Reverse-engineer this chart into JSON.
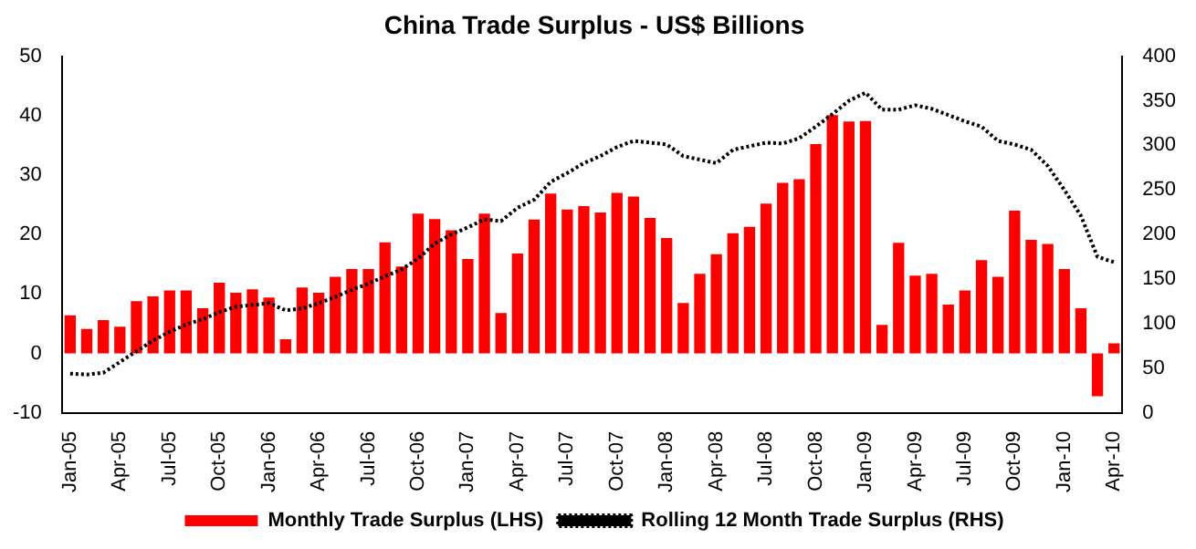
{
  "chart_data": {
    "type": "bar",
    "title": "China Trade Surplus - US$ Billions",
    "categories": [
      "Jan-05",
      null,
      null,
      "Apr-05",
      null,
      null,
      "Jul-05",
      null,
      null,
      "Oct-05",
      null,
      null,
      "Jan-06",
      null,
      null,
      "Apr-06",
      null,
      null,
      "Jul-06",
      null,
      null,
      "Oct-06",
      null,
      null,
      "Jan-07",
      null,
      null,
      "Apr-07",
      null,
      null,
      "Jul-07",
      null,
      null,
      "Oct-07",
      null,
      null,
      "Jan-08",
      null,
      null,
      "Apr-08",
      null,
      null,
      "Jul-08",
      null,
      null,
      "Oct-08",
      null,
      null,
      "Jan-09",
      null,
      null,
      "Apr-09",
      null,
      null,
      "Jul-09",
      null,
      null,
      "Oct-09",
      null,
      null,
      "Jan-10",
      null,
      null,
      "Apr-10"
    ],
    "series": [
      {
        "name": "Monthly Trade Surplus (LHS)",
        "color": "#ff0000",
        "values": [
          6.4,
          4.1,
          5.6,
          4.5,
          8.8,
          9.6,
          10.6,
          10.6,
          7.6,
          11.9,
          10.2,
          10.8,
          9.4,
          2.4,
          11.1,
          10.2,
          12.9,
          14.2,
          14.2,
          18.7,
          14.6,
          23.5,
          22.6,
          20.7,
          15.9,
          23.5,
          6.8,
          16.8,
          22.5,
          26.9,
          24.2,
          24.8,
          23.7,
          27.0,
          26.4,
          22.8,
          19.4,
          8.5,
          13.4,
          16.7,
          20.2,
          21.3,
          25.2,
          28.7,
          29.3,
          35.2,
          40.1,
          39.0,
          39.1,
          4.8,
          18.6,
          13.1,
          13.4,
          8.2,
          10.6,
          15.7,
          12.9,
          24.0,
          19.1,
          18.4,
          14.2,
          7.6,
          -7.2,
          1.7
        ]
      },
      {
        "name": "Rolling 12 Month Trade Surplus (RHS)",
        "type": "line",
        "axis": "y2",
        "color": "#000000",
        "line_style": "dotted",
        "values": [
          44,
          43,
          45,
          57,
          69,
          81,
          91,
          99,
          105,
          113,
          119,
          121,
          123,
          115,
          117,
          123,
          130,
          138,
          145,
          153,
          161,
          173,
          190,
          200,
          208,
          217,
          215,
          230,
          239,
          259,
          269,
          280,
          288,
          298,
          305,
          303,
          301,
          288,
          284,
          280,
          295,
          299,
          303,
          302,
          308,
          321,
          335,
          350,
          359,
          340,
          340,
          345,
          341,
          334,
          327,
          321,
          305,
          301,
          295,
          277,
          250,
          221,
          175,
          169
        ]
      }
    ],
    "ylim": [
      -10,
      50
    ],
    "yticks": [
      -10,
      0,
      10,
      20,
      30,
      40,
      50
    ],
    "y2lim": [
      0,
      400
    ],
    "y2ticks": [
      0,
      50,
      100,
      150,
      200,
      250,
      300,
      350,
      400
    ],
    "grid": false,
    "legend": "bottom",
    "marker": "none"
  }
}
